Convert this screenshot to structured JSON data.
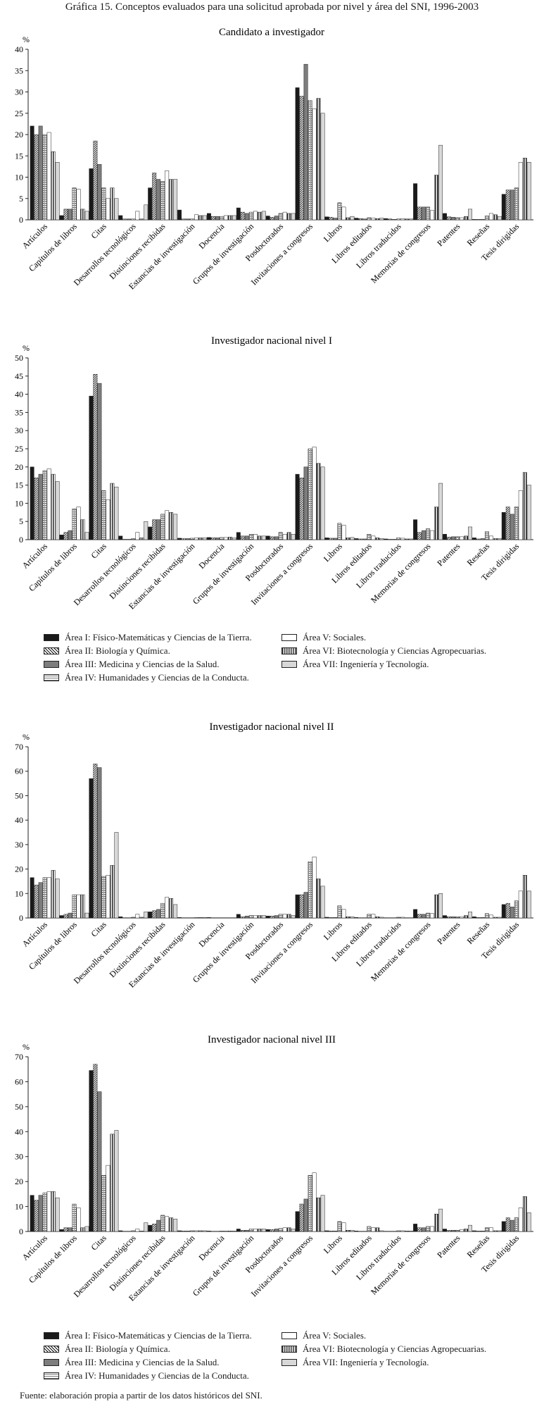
{
  "figure": {
    "title": "Gráfica 15. Conceptos evaluados para una solicitud aprobada por nivel y área del SNI, 1996-2003",
    "source": "Fuente: elaboración propia a partir de los datos históricos del SNI."
  },
  "series_styles": [
    {
      "name": "Área I: Físico-Matemáticas y Ciencias de la Tierra.",
      "color": "#1a1a1a",
      "pattern": "solid"
    },
    {
      "name": "Área II: Biología y Química.",
      "color": "#555555",
      "pattern": "diagonal"
    },
    {
      "name": "Área III: Medicina y Ciencias de la Salud.",
      "color": "#7d7d7d",
      "pattern": "solid"
    },
    {
      "name": "Área IV: Humanidades y Ciencias de la Conducta.",
      "color": "#9a9a9a",
      "pattern": "hstripe"
    },
    {
      "name": "Área V: Sociales.",
      "color": "#ffffff",
      "pattern": "outline"
    },
    {
      "name": "Área VI: Biotecnología y Ciencias Agropecuarias.",
      "color": "#4a4a4a",
      "pattern": "vstripe"
    },
    {
      "name": "Área VII: Ingeniería y Tecnología.",
      "color": "#d8d8d8",
      "pattern": "solid"
    }
  ],
  "legend": {
    "left": [
      "Área I: Físico-Matemáticas y Ciencias de la Tierra.",
      "Área II: Biología y Química.",
      "Área III: Medicina y Ciencias de la Salud.",
      "Área IV: Humanidades y Ciencias de la Conducta."
    ],
    "right": [
      "Área V: Sociales.",
      "Área VI: Biotecnología y Ciencias Agropecuarias.",
      "Área VII: Ingeniería y Tecnología."
    ]
  },
  "chart_data": [
    {
      "type": "bar",
      "title": "Candidato a investigador",
      "ylabel": "%",
      "ylim": [
        0,
        40
      ],
      "yticks": [
        0,
        5,
        10,
        15,
        20,
        25,
        30,
        35,
        40
      ],
      "categories": [
        "Artículos",
        "Capítulos de libros",
        "Citas",
        "Desarrollos tecnológicos",
        "Distinciones recibidas",
        "Estancias de investigación",
        "Docencia",
        "Grupos de investigación",
        "Posdoctorados",
        "Invitaciones a congresos",
        "Libros",
        "Libros editados",
        "Libros traducidos",
        "Memorias de congresos",
        "Patentes",
        "Reseñas",
        "Tesis dirigidas"
      ],
      "series": [
        {
          "name": "Área I",
          "values": [
            22,
            1,
            12,
            1,
            7.5,
            2.3,
            1.5,
            2.8,
            0.9,
            31,
            0.7,
            0.4,
            0.3,
            8.5,
            1.5,
            0.1,
            6
          ]
        },
        {
          "name": "Área II",
          "values": [
            20,
            2.5,
            18.5,
            0.2,
            11,
            0.2,
            0.8,
            1.8,
            0.6,
            29,
            0.6,
            0.3,
            0.2,
            3,
            0.7,
            0.1,
            7
          ]
        },
        {
          "name": "Área III",
          "values": [
            22,
            2.5,
            13,
            0.2,
            9.5,
            0.2,
            0.8,
            1.5,
            0.9,
            36.5,
            0.4,
            0.2,
            0.1,
            3,
            0.6,
            0.1,
            7
          ]
        },
        {
          "name": "Área IV",
          "values": [
            20,
            7.5,
            7.5,
            0.2,
            9,
            0.2,
            0.8,
            1.8,
            1.5,
            28,
            4,
            0.5,
            0.2,
            3,
            0.5,
            0.9,
            7.5
          ]
        },
        {
          "name": "Área V",
          "values": [
            20.5,
            7.2,
            5,
            2,
            11.5,
            1.2,
            1,
            2,
            1.8,
            26,
            3,
            0.4,
            0.3,
            2.2,
            0.5,
            1.5,
            13.5
          ]
        },
        {
          "name": "Área VI",
          "values": [
            16,
            2.5,
            7.5,
            0.2,
            9.5,
            1,
            1,
            1.8,
            1.5,
            28.5,
            0.5,
            0.3,
            0.2,
            10.5,
            0.8,
            1.2,
            14.5
          ]
        },
        {
          "name": "Área VII",
          "values": [
            13.5,
            2,
            5,
            3.5,
            9.5,
            1,
            1,
            2,
            1.5,
            25,
            0.8,
            0.4,
            0.2,
            17.5,
            2.5,
            0.8,
            13.5
          ]
        }
      ]
    },
    {
      "type": "bar",
      "title": "Investigador nacional nivel I",
      "ylabel": "%",
      "ylim": [
        0,
        50
      ],
      "yticks": [
        0,
        5,
        10,
        15,
        20,
        25,
        30,
        35,
        40,
        45,
        50
      ],
      "categories": [
        "Artículos",
        "Capítulos de libros",
        "Citas",
        "Desarrollos tecnológicos",
        "Distinciones recibidas",
        "Estancias de investigación",
        "Docencia",
        "Grupos de investigación",
        "Posdoctorados",
        "Invitaciones a congresos",
        "Libros",
        "Libros editados",
        "Libros traducidos",
        "Memorias de congresos",
        "Patentes",
        "Reseñas",
        "Tesis dirigidas"
      ],
      "series": [
        {
          "name": "Área I",
          "values": [
            20,
            1.3,
            39.5,
            1,
            3.5,
            0.4,
            0.6,
            2,
            1,
            18,
            0.5,
            0.3,
            0.2,
            5.5,
            1.5,
            0.5,
            7.5
          ]
        },
        {
          "name": "Área II",
          "values": [
            17,
            2,
            45.5,
            0.1,
            5.5,
            0.3,
            0.5,
            1,
            0.8,
            17,
            0.4,
            0.2,
            0.1,
            2,
            0.7,
            0.2,
            9
          ]
        },
        {
          "name": "Área III",
          "values": [
            18,
            2.5,
            43,
            0.1,
            5.5,
            0.3,
            0.5,
            1,
            0.8,
            20,
            0.4,
            0.2,
            0.1,
            2.5,
            0.8,
            0.3,
            7
          ]
        },
        {
          "name": "Área IV",
          "values": [
            19,
            8.5,
            13.5,
            0.3,
            7,
            0.4,
            0.6,
            1.5,
            2,
            25,
            4.5,
            1.5,
            0.5,
            3,
            0.8,
            2.2,
            9
          ]
        },
        {
          "name": "Área V",
          "values": [
            19.5,
            9,
            11,
            2,
            8,
            0.5,
            0.6,
            1.5,
            1.5,
            25.5,
            4,
            1,
            0.4,
            2.5,
            0.8,
            1,
            13.5
          ]
        },
        {
          "name": "Área VI",
          "values": [
            18,
            5.5,
            15.5,
            0.5,
            7.5,
            0.5,
            0.7,
            1,
            2,
            21,
            0.5,
            0.5,
            0.2,
            9,
            1,
            0.3,
            18.5
          ]
        },
        {
          "name": "Área VII",
          "values": [
            16,
            2,
            14.5,
            5,
            7,
            0.5,
            0.5,
            1,
            1.5,
            20,
            0.6,
            0.3,
            0.2,
            15.5,
            3.5,
            0.3,
            15
          ]
        }
      ]
    },
    {
      "type": "bar",
      "title": "Investigador nacional nivel II",
      "ylabel": "%",
      "ylim": [
        0,
        70
      ],
      "yticks": [
        0,
        10,
        20,
        30,
        40,
        50,
        60,
        70
      ],
      "categories": [
        "Artículos",
        "Capítulos de libros",
        "Citas",
        "Desarrollos tecnológicos",
        "Distinciones recibidas",
        "Estancias de investigación",
        "Docencia",
        "Grupos de investigación",
        "Posdoctorados",
        "Invitaciones a congresos",
        "Libros",
        "Libros editados",
        "Libros traducidos",
        "Memorias de congresos",
        "Patentes",
        "Reseñas",
        "Tesis dirigidas"
      ],
      "series": [
        {
          "name": "Área I",
          "values": [
            16.5,
            1,
            57,
            0.5,
            2.5,
            0.2,
            0.2,
            1.5,
            0.8,
            9.5,
            0.3,
            0.2,
            0.1,
            3.5,
            1,
            0.5,
            5.5
          ]
        },
        {
          "name": "Área II",
          "values": [
            13.5,
            1.5,
            63,
            0.1,
            3,
            0.1,
            0.1,
            0.5,
            0.8,
            9.5,
            0.2,
            0.1,
            0.1,
            1.5,
            0.5,
            0.2,
            6
          ]
        },
        {
          "name": "Área III",
          "values": [
            14.5,
            2,
            61.5,
            0.1,
            3.5,
            0.1,
            0.1,
            0.8,
            1,
            10.5,
            0.2,
            0.1,
            0.1,
            1.5,
            0.5,
            0.2,
            4.5
          ]
        },
        {
          "name": "Área IV",
          "values": [
            16.5,
            9.5,
            17,
            0.3,
            6,
            0.1,
            0.1,
            1,
            1.5,
            23,
            5,
            1.5,
            0.3,
            2,
            0.5,
            1.8,
            7
          ]
        },
        {
          "name": "Área V",
          "values": [
            16.5,
            9.5,
            17.5,
            1.5,
            8.5,
            0.2,
            0.1,
            1,
            1.5,
            25,
            3.5,
            1.5,
            0.3,
            1.8,
            0.5,
            1.2,
            11
          ]
        },
        {
          "name": "Área VI",
          "values": [
            19.5,
            9.5,
            21.5,
            0.3,
            8,
            0.2,
            0.1,
            1,
            1.5,
            16,
            0.5,
            0.5,
            0.1,
            9.5,
            1,
            0.3,
            17.5
          ]
        },
        {
          "name": "Área VII",
          "values": [
            16,
            2,
            35,
            2.5,
            5.5,
            0.2,
            0.1,
            1,
            1,
            13,
            0.5,
            0.3,
            0.1,
            10,
            2.5,
            0.3,
            11
          ]
        }
      ]
    },
    {
      "type": "bar",
      "title": "Investigador nacional nivel III",
      "ylabel": "%",
      "ylim": [
        0,
        70
      ],
      "yticks": [
        0,
        10,
        20,
        30,
        40,
        50,
        60,
        70
      ],
      "categories": [
        "Artículos",
        "Capítulos de libros",
        "Citas",
        "Desarrollos tecnológicos",
        "Distinciones recibidas",
        "Estancias de investigación",
        "Docencia",
        "Grupos de investigación",
        "Posdoctorados",
        "Invitaciones a congresos",
        "Libros",
        "Libros editados",
        "Libros traducidos",
        "Memorias de congresos",
        "Patentes",
        "Reseñas",
        "Tesis dirigidas"
      ],
      "series": [
        {
          "name": "Área I",
          "values": [
            14.5,
            0.8,
            64.5,
            0.3,
            2.5,
            0.3,
            0.2,
            1,
            0.8,
            8,
            0.3,
            0.2,
            0.1,
            3,
            1,
            0.3,
            4
          ]
        },
        {
          "name": "Área II",
          "values": [
            12.5,
            1.5,
            67,
            0.1,
            3,
            0.2,
            0.1,
            0.5,
            0.8,
            11,
            0.2,
            0.1,
            0.1,
            1.5,
            0.5,
            0.2,
            5.5
          ]
        },
        {
          "name": "Área III",
          "values": [
            14.5,
            1.5,
            56,
            0.1,
            4.5,
            0.2,
            0.1,
            0.5,
            1,
            13,
            0.2,
            0.1,
            0.1,
            1.5,
            0.5,
            0.2,
            4.5
          ]
        },
        {
          "name": "Área IV",
          "values": [
            15.5,
            11,
            22.5,
            0.3,
            6.5,
            0.3,
            0.2,
            1,
            1.2,
            22.5,
            4,
            2,
            0.3,
            2,
            0.5,
            1.5,
            5.5
          ]
        },
        {
          "name": "Área V",
          "values": [
            16,
            9.5,
            26.5,
            1,
            6,
            0.3,
            0.2,
            1,
            1.5,
            23.5,
            3.5,
            1.5,
            0.3,
            2,
            0.8,
            1.5,
            9.5
          ]
        },
        {
          "name": "Área VI",
          "values": [
            16,
            1.5,
            39,
            0.2,
            5.5,
            0.3,
            0.2,
            1,
            1.5,
            13.5,
            0.5,
            1.5,
            0.2,
            7,
            1,
            0.3,
            14
          ]
        },
        {
          "name": "Área VII",
          "values": [
            13.5,
            2,
            40.5,
            3.5,
            5,
            0.3,
            0.2,
            1,
            1,
            14.5,
            0.5,
            0.3,
            0.2,
            9,
            2.5,
            0.3,
            7.5
          ]
        }
      ]
    }
  ]
}
